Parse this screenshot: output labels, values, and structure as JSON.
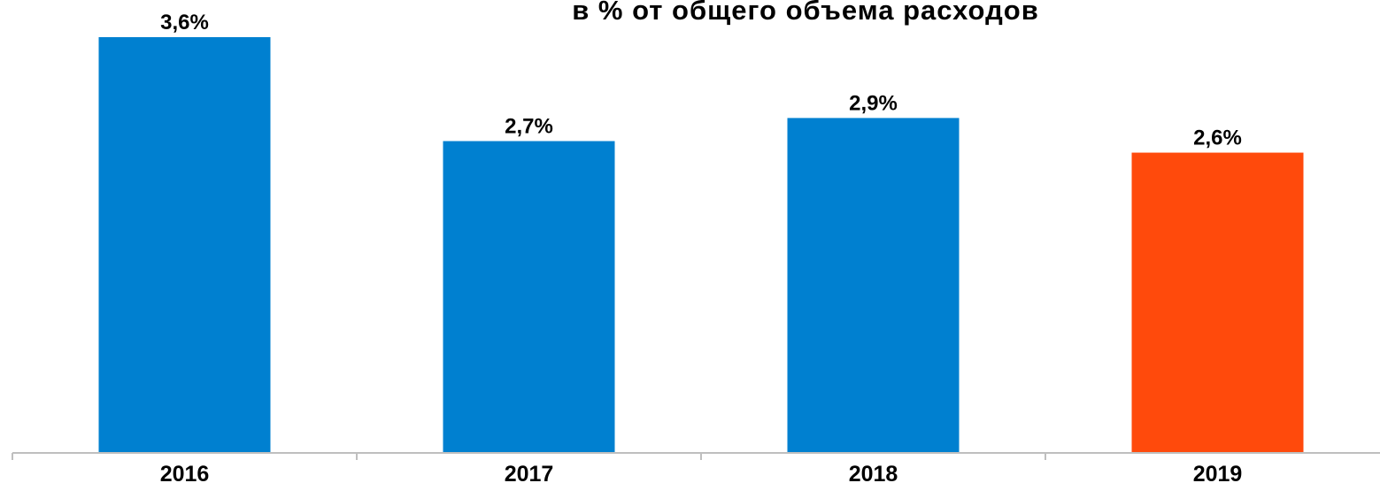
{
  "chart_data": {
    "type": "bar",
    "title": "в % от общего объема расходов",
    "xlabel": "",
    "ylabel": "",
    "categories": [
      "2016",
      "2017",
      "2018",
      "2019"
    ],
    "values": [
      3.6,
      2.7,
      2.9,
      2.6
    ],
    "data_labels": [
      "3,6%",
      "2,7%",
      "2,9%",
      "2,6%"
    ],
    "ylim": [
      0,
      3.6
    ],
    "grid": false,
    "legend": "none",
    "colors": {
      "default_bar": "#0080D0",
      "highlight_bar": "#FF4A0C",
      "axis": "#BFBFBF"
    },
    "highlight_index": 3
  }
}
